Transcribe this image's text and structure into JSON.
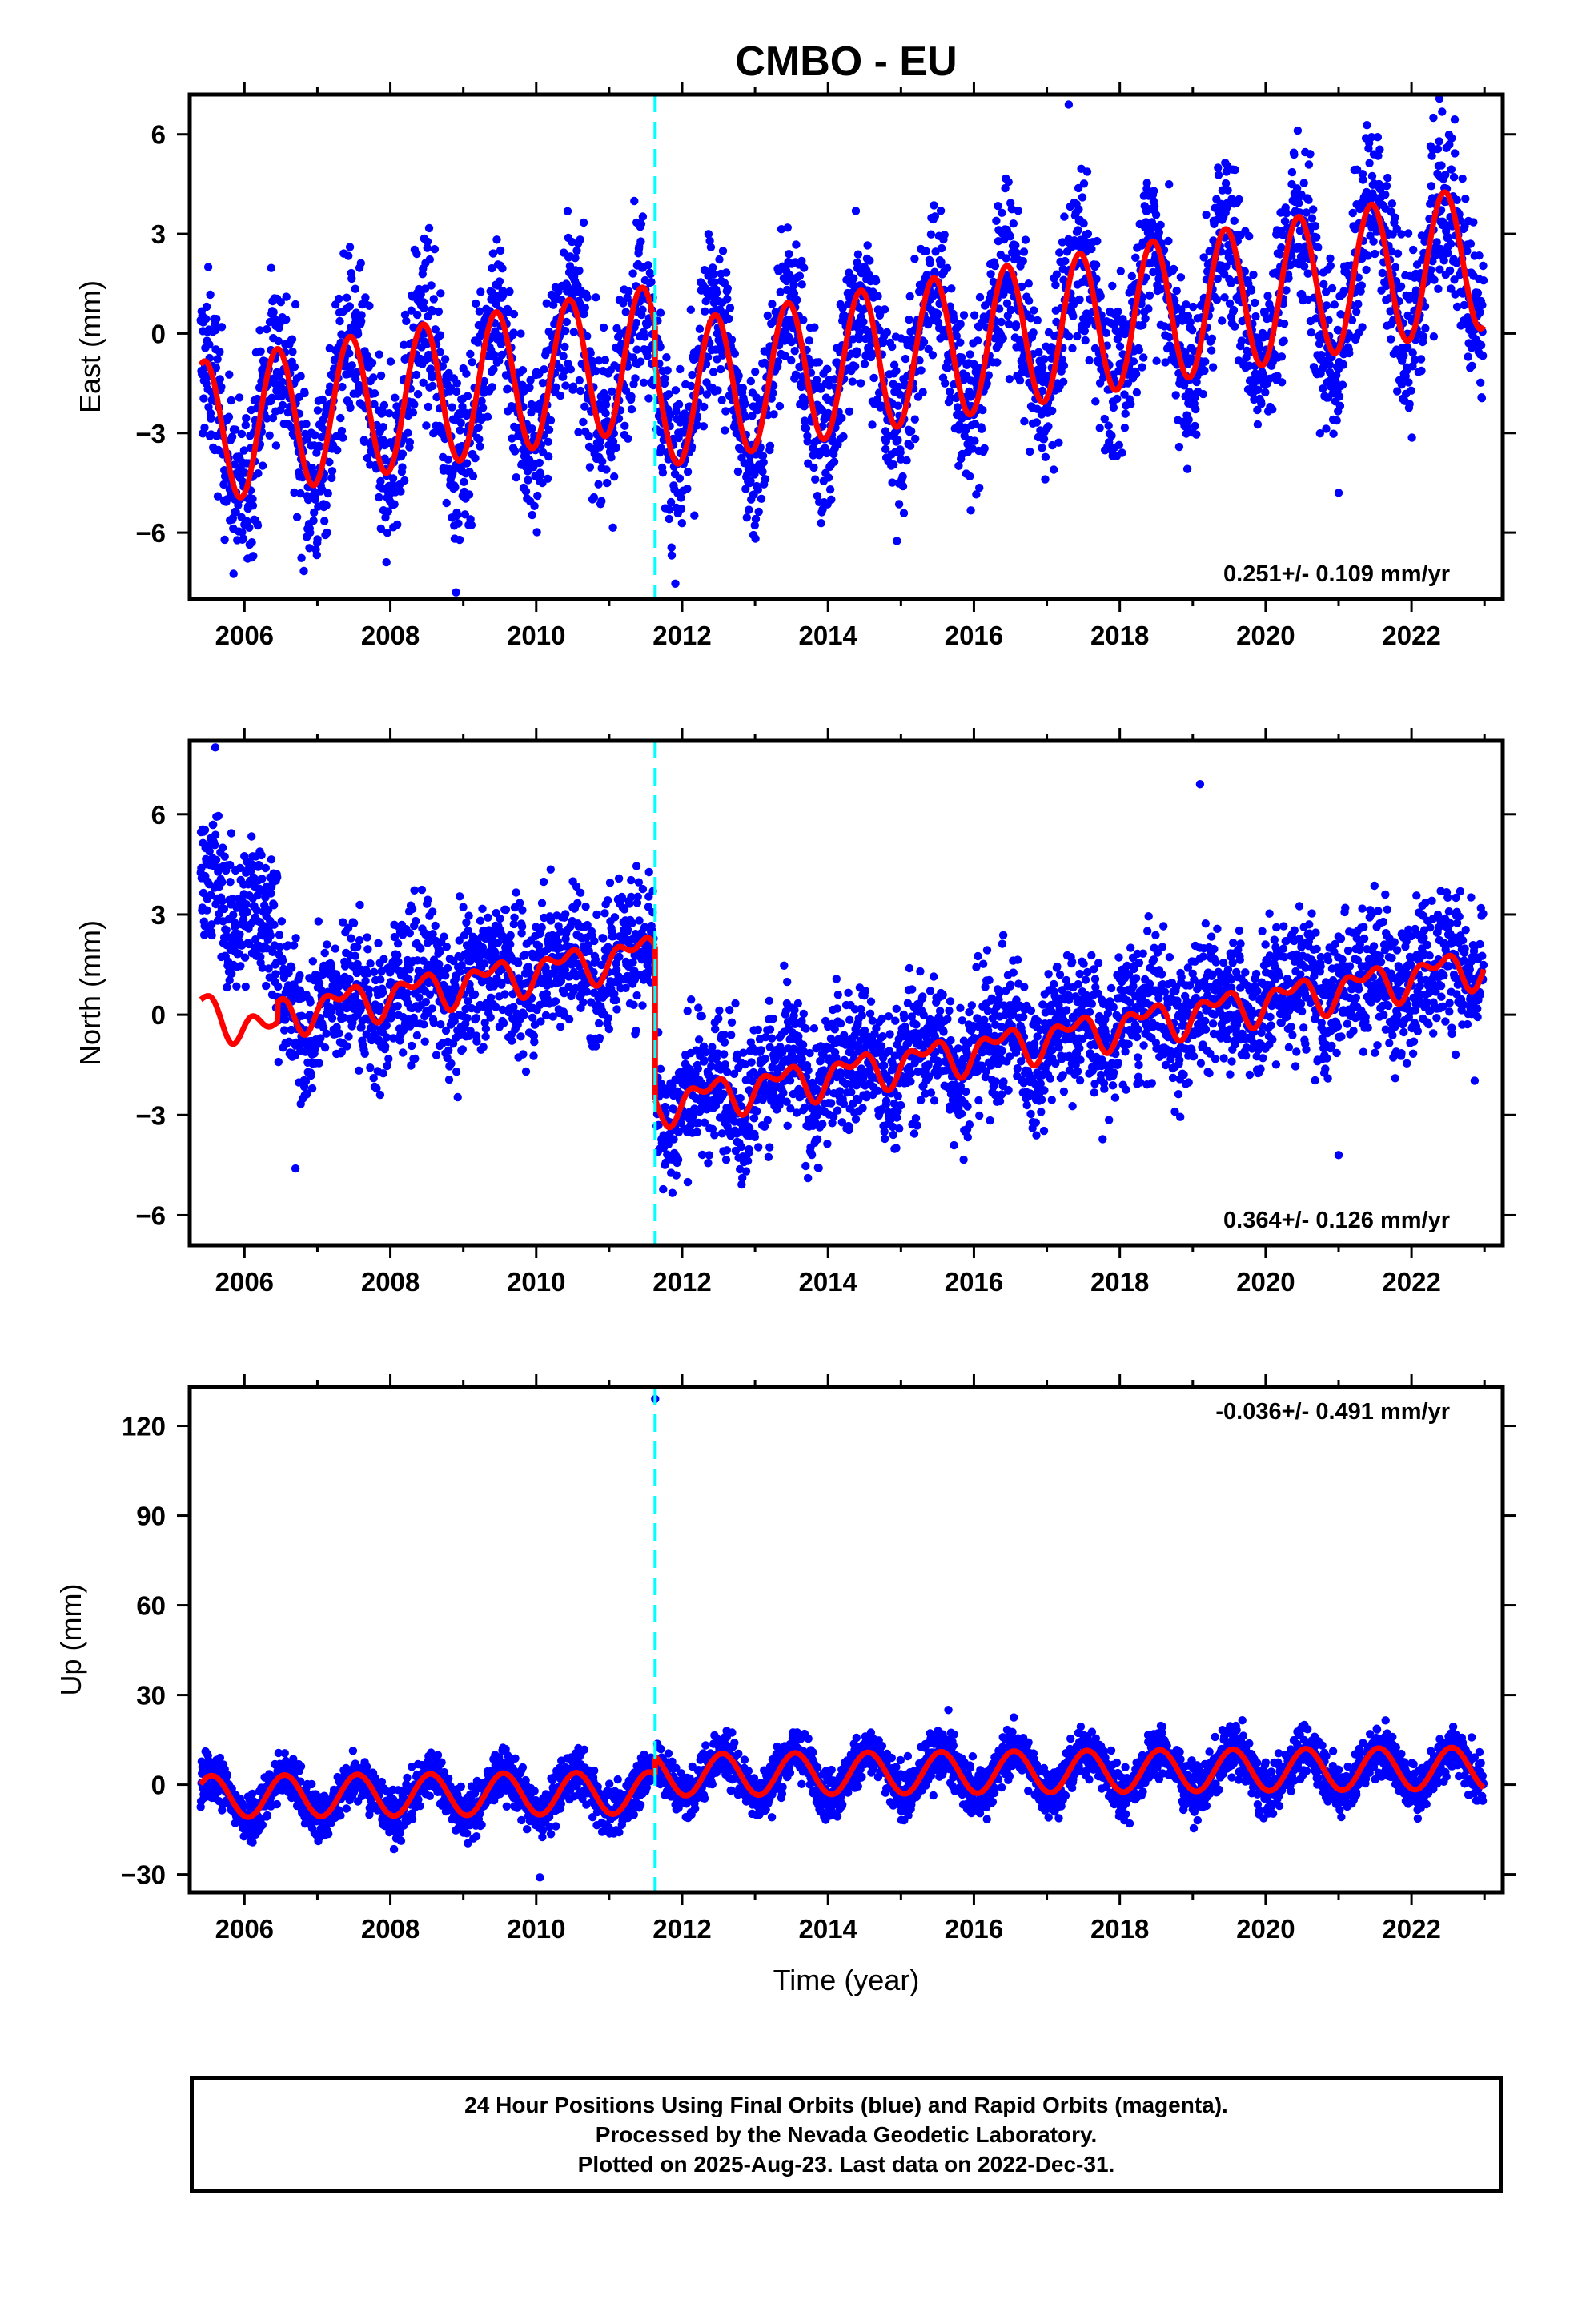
{
  "title": "CMBO - EU",
  "footer": {
    "line1": "24 Hour Positions Using Final Orbits (blue) and Rapid Orbits (magenta).",
    "line2": "Processed by the Nevada Geodetic Laboratory.",
    "line3": "Plotted on 2025-Aug-23. Last data on 2022-Dec-31."
  },
  "colors": {
    "final_orbits": "#0000ff",
    "model_fit": "#ff0000",
    "step_marker": "#00ffff",
    "frame": "#000000"
  },
  "chart_data": [
    {
      "type": "scatter",
      "panel": "east",
      "ylabel": "East (mm)",
      "xlabel": "",
      "xlim": [
        2005.25,
        2023.25
      ],
      "ylim": [
        -8,
        7.2
      ],
      "x_ticks": [
        2006,
        2008,
        2010,
        2012,
        2014,
        2016,
        2018,
        2020,
        2022
      ],
      "y_ticks": [
        -6,
        -3,
        0,
        3,
        6
      ],
      "y_tick_labels": [
        "−6",
        "−3",
        "0",
        "3",
        "6"
      ],
      "rate_text": "0.251+/- 0.109 mm/yr",
      "rate_position": "bottom-right",
      "step_epoch": 2011.63,
      "data_range": [
        2005.4,
        2022.99
      ],
      "series": [
        {
          "name": "Final Orbits (blue)",
          "role": "observations",
          "model": {
            "intercept": -3.0,
            "rate": 0.37,
            "step": -1.2,
            "ann_amp": 2.15,
            "ann_peak": 0.45
          },
          "scatter": 1.3
        },
        {
          "name": "",
          "role": "fit",
          "model": {
            "intercept": -3.0,
            "rate": 0.37,
            "step": -1.2,
            "ann_amp": 2.15,
            "ann_peak": 0.45
          }
        }
      ],
      "outliers": [
        {
          "x": 2008.9,
          "y": -7.8
        },
        {
          "x": 2021.0,
          "y": -4.8
        },
        {
          "x": 2017.3,
          "y": 6.9
        },
        {
          "x": 2022.3,
          "y": 6.5
        }
      ]
    },
    {
      "type": "scatter",
      "panel": "north",
      "ylabel": "North (mm)",
      "xlabel": "",
      "xlim": [
        2005.25,
        2023.25
      ],
      "ylim": [
        -6.9,
        8.2
      ],
      "x_ticks": [
        2006,
        2008,
        2010,
        2012,
        2014,
        2016,
        2018,
        2020,
        2022
      ],
      "y_ticks": [
        -6,
        -3,
        0,
        3,
        6
      ],
      "y_tick_labels": [
        "−6",
        "−3",
        "0",
        "3",
        "6"
      ],
      "rate_text": "0.364+/- 0.126 mm/yr",
      "rate_position": "bottom-right",
      "step_epoch": 2011.63,
      "data_range": [
        2005.4,
        2022.99
      ],
      "series": [
        {
          "name": "Final Orbits (blue)",
          "role": "observations",
          "segments": [
            {
              "from": 2005.4,
              "to": 2006.45,
              "start": 4.0,
              "end": 2.6
            },
            {
              "from": 2006.45,
              "to": 2011.63,
              "start": 0.0,
              "end": 2.0
            },
            {
              "from": 2011.63,
              "to": 2023.0,
              "start": -2.6,
              "end": 1.6
            }
          ],
          "ann_amp": 0.5,
          "semi_amp": 0.35,
          "scatter": 1.05
        },
        {
          "name": "",
          "role": "fit",
          "segments": [
            {
              "from": 2005.4,
              "to": 2006.45,
              "start": 0.2,
              "end": -0.6
            },
            {
              "from": 2006.45,
              "to": 2011.63,
              "start": 0.0,
              "end": 1.9
            },
            {
              "from": 2011.63,
              "to": 2023.0,
              "start": -2.7,
              "end": 1.5
            }
          ],
          "ann_amp": 0.45,
          "semi_amp": 0.3
        }
      ],
      "outliers": [
        {
          "x": 2005.6,
          "y": 8.0
        },
        {
          "x": 2019.1,
          "y": 6.9
        },
        {
          "x": 2021.0,
          "y": -4.2
        },
        {
          "x": 2006.7,
          "y": -4.6
        }
      ]
    },
    {
      "type": "scatter",
      "panel": "up",
      "ylabel": "Up (mm)",
      "xlabel": "Time (year)",
      "xlim": [
        2005.25,
        2023.25
      ],
      "ylim": [
        -36,
        133
      ],
      "x_ticks": [
        2006,
        2008,
        2010,
        2012,
        2014,
        2016,
        2018,
        2020,
        2022
      ],
      "y_ticks": [
        -30,
        0,
        30,
        60,
        90,
        120
      ],
      "y_tick_labels": [
        "−30",
        "0",
        "30",
        "60",
        "90",
        "120"
      ],
      "rate_text": "-0.036+/- 0.491 mm/yr",
      "rate_position": "top-right",
      "step_epoch": 2011.63,
      "data_range": [
        2005.4,
        2022.99
      ],
      "series": [
        {
          "name": "Final Orbits (blue)",
          "role": "observations",
          "model": {
            "intercept": -4.0,
            "rate": 0.2,
            "step": 6.0,
            "ann_amp": 7.0,
            "ann_peak": 0.55
          },
          "scatter": 4.2
        },
        {
          "name": "",
          "role": "fit",
          "model": {
            "intercept": -4.0,
            "rate": 0.2,
            "step": 6.0,
            "ann_amp": 7.0,
            "ann_peak": 0.55
          }
        }
      ],
      "outliers": [
        {
          "x": 2011.63,
          "y": 129
        },
        {
          "x": 2010.05,
          "y": -31
        },
        {
          "x": 2015.65,
          "y": 25
        }
      ]
    }
  ]
}
